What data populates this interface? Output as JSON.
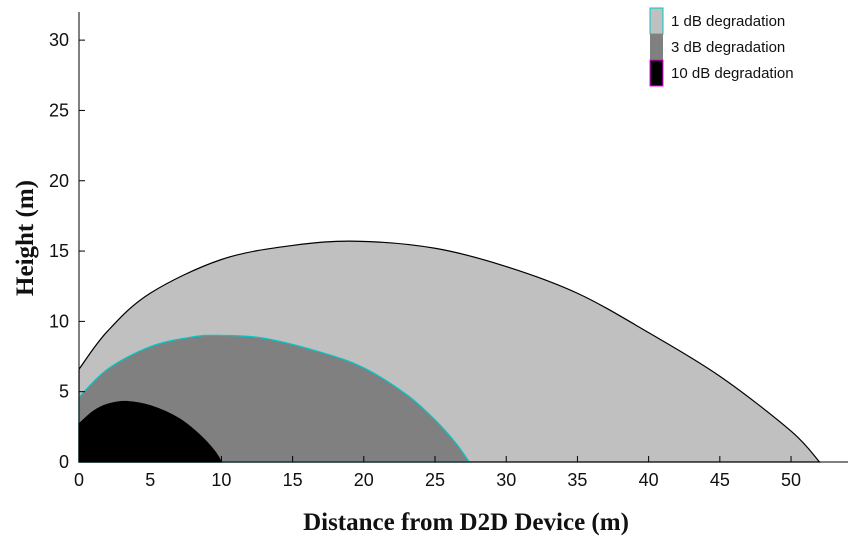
{
  "chart_data": {
    "type": "area",
    "xlabel": "Distance from D2D Device (m)",
    "ylabel": "Height (m)",
    "xlim": [
      0,
      54
    ],
    "ylim": [
      0,
      32
    ],
    "xticks": [
      0,
      5,
      10,
      15,
      20,
      25,
      30,
      35,
      40,
      45,
      50
    ],
    "yticks": [
      0,
      5,
      10,
      15,
      20,
      25,
      30
    ],
    "grid": false,
    "legend_position": "top-right",
    "series": [
      {
        "name": "1 dB degradation",
        "color": "#c0c0c0",
        "edge_color": "#000000",
        "points": [
          [
            0,
            0
          ],
          [
            0,
            6.6
          ],
          [
            2,
            9.3
          ],
          [
            5,
            12.0
          ],
          [
            10,
            14.4
          ],
          [
            15,
            15.4
          ],
          [
            19.5,
            15.7
          ],
          [
            25,
            15.2
          ],
          [
            30,
            13.9
          ],
          [
            35,
            12.0
          ],
          [
            40,
            9.2
          ],
          [
            45,
            6.1
          ],
          [
            50,
            2.2
          ],
          [
            52,
            0
          ]
        ]
      },
      {
        "name": "3 dB degradation",
        "color": "#808080",
        "edge_color": "#00c8c8",
        "points": [
          [
            0,
            0
          ],
          [
            0,
            4.6
          ],
          [
            2,
            6.6
          ],
          [
            5,
            8.2
          ],
          [
            8,
            8.9
          ],
          [
            10,
            9.0
          ],
          [
            13,
            8.8
          ],
          [
            17,
            7.8
          ],
          [
            20,
            6.7
          ],
          [
            23,
            4.8
          ],
          [
            25,
            3.0
          ],
          [
            26.5,
            1.3
          ],
          [
            27.4,
            0
          ]
        ]
      },
      {
        "name": "10 dB degradation",
        "color": "#000000",
        "edge_color": "#000000",
        "points": [
          [
            0,
            0
          ],
          [
            0,
            2.7
          ],
          [
            1,
            3.6
          ],
          [
            2,
            4.1
          ],
          [
            3.3,
            4.3
          ],
          [
            5,
            4.0
          ],
          [
            7,
            3.1
          ],
          [
            8.5,
            1.9
          ],
          [
            9.5,
            0.8
          ],
          [
            10,
            0
          ]
        ]
      }
    ]
  }
}
